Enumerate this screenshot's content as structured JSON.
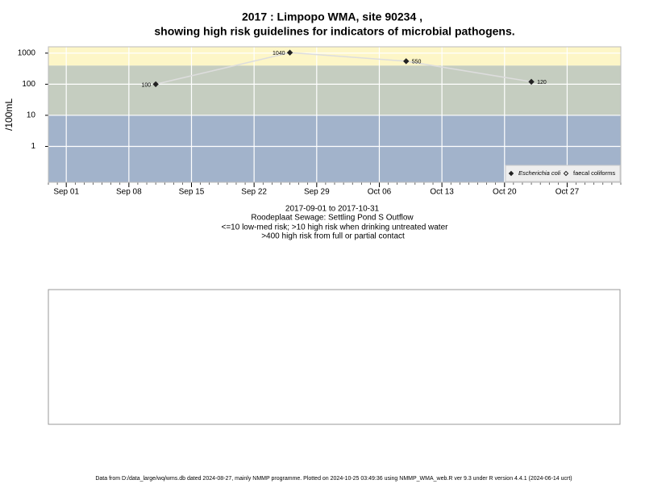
{
  "chart_data": {
    "type": "line",
    "title": "2017 : Limpopo WMA, site 90234 ,",
    "subtitle": "showing high risk guidelines for indicators of microbial pathogens.",
    "y_label": "/100mL",
    "log_y": true,
    "grid": true,
    "legend_position": "bottom-right",
    "x": [
      "2017-09-11",
      "2017-09-26",
      "2017-10-09",
      "2017-10-23"
    ],
    "series": [
      {
        "name": "Escherichia coli",
        "color": "#222222",
        "values": [
          100,
          1040,
          550,
          120
        ]
      },
      {
        "name": "faecal coliforms",
        "color": "#222222",
        "values": [
          null,
          null,
          null,
          null
        ]
      }
    ],
    "xlim": [
      "2017-08-30",
      "2017-11-02"
    ],
    "xticks": [
      {
        "value": "2017-09-01",
        "label": "Sep 01"
      },
      {
        "value": "2017-09-08",
        "label": "Sep 08"
      },
      {
        "value": "2017-09-15",
        "label": "Sep 15"
      },
      {
        "value": "2017-09-22",
        "label": "Sep 22"
      },
      {
        "value": "2017-09-29",
        "label": "Sep 29"
      },
      {
        "value": "2017-10-06",
        "label": "Oct 06"
      },
      {
        "value": "2017-10-13",
        "label": "Oct 13"
      },
      {
        "value": "2017-10-20",
        "label": "Oct 20"
      },
      {
        "value": "2017-10-27",
        "label": "Oct 27"
      }
    ],
    "ylim": [
      0.07,
      1600
    ],
    "yticks": [
      1,
      10,
      100,
      1000
    ],
    "thresholds": [
      10,
      400
    ],
    "band_colors": [
      "#a2b3cb",
      "#c5cdc0",
      "#fdf6c7"
    ],
    "line_color": "#dddddd",
    "notes": [
      "2017-09-01 to 2017-10-31",
      "Roodeplaat Sewage: Settling Pond S Outflow",
      "<=10 low-med risk; >10 high risk when drinking untreated water",
      ">400 high risk from full or partial contact"
    ],
    "footer": "Data from D:/data_large/wq/wms.db dated 2024-08-27, mainly NMMP programme. Plotted on 2024-10-25 03:49:36 using NMMP_WMA_web.R ver 9.3 under R version 4.4.1 (2024-06-14 ucrt)"
  }
}
